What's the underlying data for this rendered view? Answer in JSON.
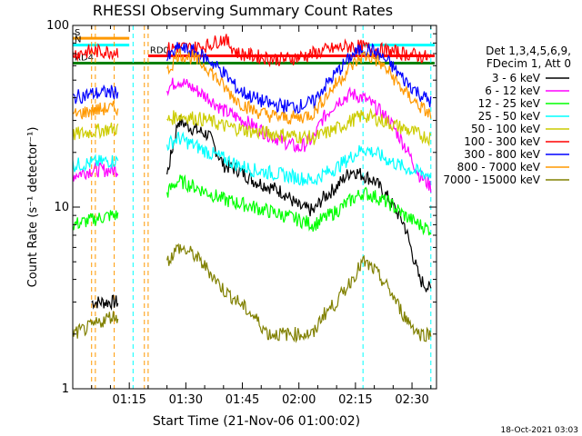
{
  "chart_data": {
    "type": "line",
    "title": "RHESSI Observing Summary Count Rates",
    "xlabel": "Start Time (21-Nov-06 01:00:02)",
    "ylabel": "Count Rate (s⁻¹ detector⁻¹)",
    "yscale": "log",
    "xlim_minutes": [
      0,
      96.5
    ],
    "ylim": [
      1,
      100
    ],
    "x_ticks": [
      {
        "minute": 15,
        "label": "01:15"
      },
      {
        "minute": 30,
        "label": "01:30"
      },
      {
        "minute": 45,
        "label": "01:45"
      },
      {
        "minute": 60,
        "label": "02:00"
      },
      {
        "minute": 75,
        "label": "02:15"
      },
      {
        "minute": 90,
        "label": "02:30"
      }
    ],
    "y_ticks": [
      {
        "value": 1,
        "label": "1"
      },
      {
        "value": 10,
        "label": "10"
      },
      {
        "value": 100,
        "label": "100"
      }
    ],
    "legend_header": [
      "Det 1,3,4,5,6,9,",
      "FDecim 1, Att 0"
    ],
    "legend_position": "right",
    "x": [
      0,
      5,
      10,
      12,
      22,
      25,
      28,
      32,
      36,
      40,
      44,
      48,
      52,
      56,
      60,
      64,
      66,
      70,
      74,
      77,
      80,
      84,
      88,
      92,
      95
    ],
    "series": [
      {
        "name": "3 - 6 keV",
        "color": "#000000",
        "values": [
          null,
          3,
          3,
          3,
          null,
          15,
          30,
          27,
          25,
          17,
          16,
          14,
          13,
          12,
          10,
          9.5,
          11,
          13,
          16,
          15,
          14,
          11,
          8,
          4,
          3.5
        ]
      },
      {
        "name": "6 - 12 keV",
        "color": "#ff00ff",
        "values": [
          15,
          16,
          16,
          16,
          null,
          45,
          50,
          45,
          40,
          34,
          31,
          28,
          25,
          23,
          21,
          24,
          30,
          38,
          42,
          40,
          36,
          30,
          22,
          15,
          13
        ]
      },
      {
        "name": "12 - 25 keV",
        "color": "#00ff00",
        "values": [
          8,
          8.5,
          9,
          9,
          null,
          12,
          14,
          13,
          12,
          11,
          10.5,
          10,
          9.5,
          9,
          8.5,
          8,
          8.5,
          9.5,
          11,
          12,
          11.5,
          10.5,
          9,
          8,
          7.5
        ]
      },
      {
        "name": "25 - 50 keV",
        "color": "#00ffff",
        "values": [
          17,
          17.5,
          18,
          18,
          null,
          22,
          24,
          22,
          20,
          18.5,
          17,
          16,
          15.5,
          15,
          14.5,
          14,
          15,
          16.5,
          19,
          21,
          20,
          18,
          16.5,
          15.5,
          15
        ]
      },
      {
        "name": "50 - 100 keV",
        "color": "#cccc00",
        "values": [
          25,
          26,
          27,
          27,
          null,
          30,
          32,
          31,
          30,
          28,
          27,
          26,
          25.5,
          25,
          24.5,
          24,
          25,
          27,
          30,
          32,
          31,
          29,
          27,
          25,
          24
        ]
      },
      {
        "name": "100 - 300 keV",
        "color": "#ff0000",
        "values": [
          70,
          72,
          72,
          72,
          null,
          74,
          76,
          75,
          78,
          85,
          70,
          68,
          66,
          65,
          67,
          70,
          72,
          75,
          77,
          76,
          74,
          72,
          70,
          68,
          66
        ]
      },
      {
        "name": "300 - 800 keV",
        "color": "#0000ff",
        "values": [
          40,
          42,
          43,
          43,
          null,
          65,
          75,
          72,
          65,
          55,
          44,
          40,
          37,
          36,
          36,
          38,
          44,
          55,
          68,
          75,
          72,
          62,
          50,
          42,
          38
        ]
      },
      {
        "name": "800 - 7000 keV",
        "color": "#ff9900",
        "values": [
          32,
          34,
          35,
          35,
          null,
          55,
          70,
          66,
          58,
          46,
          38,
          34,
          32,
          31,
          31,
          33,
          38,
          48,
          60,
          68,
          66,
          55,
          43,
          36,
          32
        ]
      },
      {
        "name": "7000 - 15000 keV",
        "color": "#808000",
        "values": [
          2,
          2.2,
          2.5,
          2.5,
          null,
          5,
          6,
          5.5,
          4.5,
          3.5,
          3,
          2.5,
          2,
          2,
          2,
          2,
          2.5,
          3,
          4,
          5,
          4.5,
          3.5,
          2.5,
          2,
          2
        ]
      }
    ],
    "flag_lines": [
      {
        "label": "S",
        "color": "#ff9900",
        "y": 85,
        "x_start": 0,
        "x_end": 15
      },
      {
        "label": "N",
        "color": "#00ffff",
        "y": 78,
        "x_start": 0,
        "x_end": 15
      },
      {
        "label": "",
        "color": "#00ffff",
        "y": 78,
        "x_start": 77,
        "x_end": 96
      },
      {
        "label": "RD0",
        "color": "#ff0000",
        "y": 68,
        "x_start": 20,
        "x_end": 96
      },
      {
        "label": "RD4",
        "color": "#008000",
        "y": 62,
        "x_start": 0,
        "x_end": 96
      }
    ],
    "vertical_markers": [
      {
        "minute": 5,
        "color": "#ff9900"
      },
      {
        "minute": 6,
        "color": "#ff9900"
      },
      {
        "minute": 11,
        "color": "#ff9900"
      },
      {
        "minute": 16,
        "color": "#00ffff"
      },
      {
        "minute": 19,
        "color": "#ff9900"
      },
      {
        "minute": 20,
        "color": "#ff9900"
      },
      {
        "minute": 77,
        "color": "#00ffff"
      },
      {
        "minute": 95,
        "color": "#00ffff"
      }
    ]
  },
  "footer": {
    "timestamp": "18-Oct-2021 03:03"
  }
}
